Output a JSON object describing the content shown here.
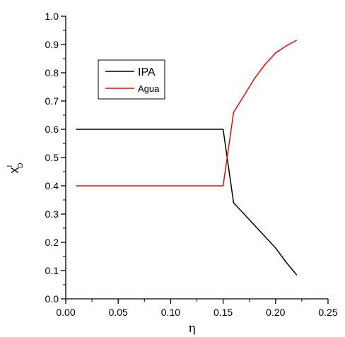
{
  "chart_data": {
    "type": "line",
    "xlabel": "η",
    "ylabel": {
      "base": "x",
      "superscript": "I",
      "subscript": "D"
    },
    "xlim": [
      0,
      0.25
    ],
    "ylim": [
      0,
      1.0
    ],
    "xticks": [
      "0.00",
      "0.05",
      "0.10",
      "0.15",
      "0.20",
      "0.25"
    ],
    "yticks": [
      "0.0",
      "0.1",
      "0.2",
      "0.3",
      "0.4",
      "0.5",
      "0.6",
      "0.7",
      "0.8",
      "0.9",
      "1.0"
    ],
    "grid": false,
    "legend_position": "upper-left",
    "series": [
      {
        "name": "IPA",
        "color": "#000000",
        "x": [
          0.01,
          0.03,
          0.05,
          0.07,
          0.09,
          0.11,
          0.13,
          0.15,
          0.16,
          0.17,
          0.18,
          0.19,
          0.2,
          0.21,
          0.22
        ],
        "y": [
          0.6,
          0.6,
          0.6,
          0.6,
          0.6,
          0.6,
          0.6,
          0.6,
          0.34,
          0.3,
          0.26,
          0.22,
          0.18,
          0.13,
          0.085
        ]
      },
      {
        "name": "Agua",
        "color": "#ff0000",
        "x": [
          0.01,
          0.03,
          0.05,
          0.07,
          0.09,
          0.11,
          0.13,
          0.15,
          0.16,
          0.17,
          0.18,
          0.19,
          0.2,
          0.21,
          0.22
        ],
        "y": [
          0.4,
          0.4,
          0.4,
          0.4,
          0.4,
          0.4,
          0.4,
          0.4,
          0.66,
          0.72,
          0.78,
          0.83,
          0.87,
          0.895,
          0.915
        ]
      }
    ]
  }
}
